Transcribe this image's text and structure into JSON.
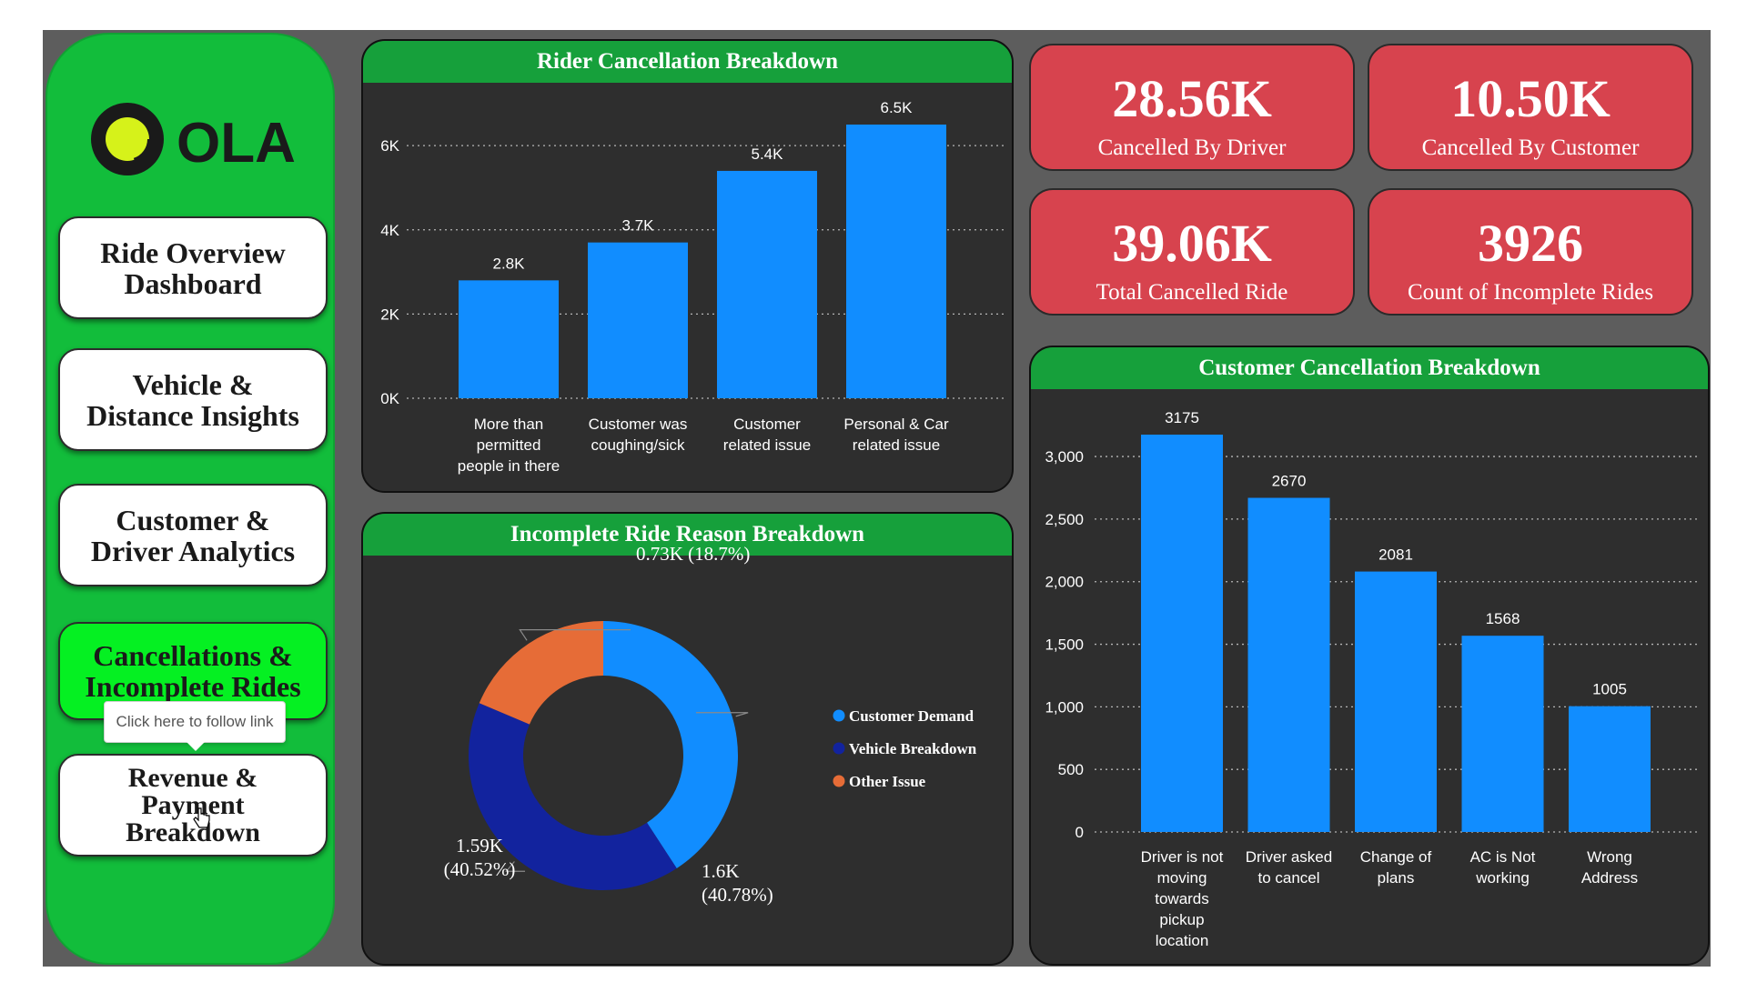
{
  "sidebar": {
    "logo_text": "OLA",
    "nav": [
      "Ride Overview Dashboard",
      "Vehicle & Distance Insights",
      "Customer & Driver Analytics",
      "Cancellations & Incomplete Rides",
      "Revenue & Payment Breakdown"
    ],
    "nav_lines": [
      [
        "Ride Overview",
        "Dashboard"
      ],
      [
        "Vehicle &",
        "Distance Insights"
      ],
      [
        "Customer &",
        "Driver Analytics"
      ],
      [
        "Cancellations &",
        "Incomplete Rides"
      ],
      [
        "Revenue &",
        "Payment",
        "Breakdown"
      ]
    ],
    "active_index": 3,
    "tooltip": "Click here to follow link"
  },
  "kpis": [
    {
      "value": "28.56K",
      "label": "Cancelled By Driver"
    },
    {
      "value": "10.50K",
      "label": "Cancelled By Customer"
    },
    {
      "value": "39.06K",
      "label": "Total Cancelled Ride"
    },
    {
      "value": "3926",
      "label": "Count of Incomplete Rides"
    }
  ],
  "colors": {
    "sidebar_green": "#12bd3b",
    "active_green": "#05f022",
    "header_green": "#16a03b",
    "kpi_red": "#d7434e",
    "panel_bg": "#2e2e2e",
    "bar_blue": "#118dff",
    "navy": "#12239e",
    "orange": "#e66c37"
  },
  "chart_data": [
    {
      "type": "bar",
      "title": "Rider Cancellation Breakdown",
      "categories": [
        [
          "More than",
          "permitted",
          "people in there"
        ],
        [
          "Customer was",
          "coughing/sick"
        ],
        [
          "Customer",
          "related issue"
        ],
        [
          "Personal & Car",
          "related issue"
        ]
      ],
      "values": [
        2800,
        3700,
        5400,
        6500
      ],
      "data_labels": [
        "2.8K",
        "3.7K",
        "5.4K",
        "6.5K"
      ],
      "ylim": [
        0,
        6500
      ],
      "yticks": [
        0,
        2000,
        4000,
        6000
      ],
      "ytick_labels": [
        "0K",
        "2K",
        "4K",
        "6K"
      ],
      "grid": true
    },
    {
      "type": "pie",
      "donut": true,
      "title": "Incomplete Ride Reason Breakdown",
      "labels": [
        "Customer Demand",
        "Vehicle Breakdown",
        "Other Issue"
      ],
      "values": [
        1600,
        1590,
        730
      ],
      "percents": [
        40.78,
        40.52,
        18.7
      ],
      "data_labels": [
        [
          "1.6K",
          "(40.78%)"
        ],
        [
          "1.59K",
          "(40.52%)"
        ],
        [
          "0.73K (18.7%)"
        ]
      ],
      "colors": [
        "#118dff",
        "#12239e",
        "#e66c37"
      ],
      "legend": "right"
    },
    {
      "type": "bar",
      "title": "Customer Cancellation Breakdown",
      "categories": [
        [
          "Driver is not",
          "moving",
          "towards",
          "pickup",
          "location"
        ],
        [
          "Driver asked",
          "to cancel"
        ],
        [
          "Change of",
          "plans"
        ],
        [
          "AC is Not",
          "working"
        ],
        [
          "Wrong",
          "Address"
        ]
      ],
      "values": [
        3175,
        2670,
        2081,
        1568,
        1005
      ],
      "data_labels": [
        "3175",
        "2670",
        "2081",
        "1568",
        "1005"
      ],
      "ylim": [
        0,
        3175
      ],
      "yticks": [
        0,
        500,
        1000,
        1500,
        2000,
        2500,
        3000
      ],
      "ytick_labels": [
        "0",
        "500",
        "1,000",
        "1,500",
        "2,000",
        "2,500",
        "3,000"
      ],
      "grid": true
    }
  ]
}
